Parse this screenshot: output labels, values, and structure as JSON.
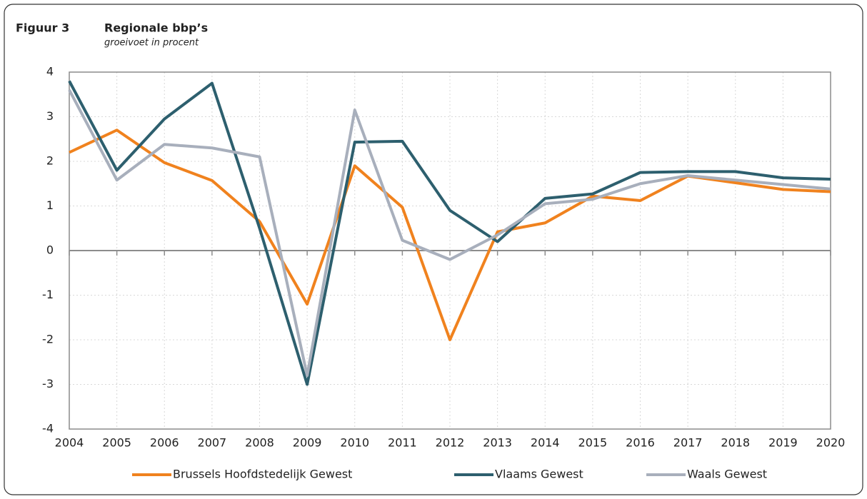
{
  "chart_data": {
    "type": "line",
    "figure_label": "Figuur 3",
    "title": "Regionale bbp’s",
    "subtitle": "groeivoet in procent",
    "x": [
      2004,
      2005,
      2006,
      2007,
      2008,
      2009,
      2010,
      2011,
      2012,
      2013,
      2014,
      2015,
      2016,
      2017,
      2018,
      2019,
      2020
    ],
    "xlim": [
      2004,
      2020
    ],
    "xticks": [
      2004,
      2005,
      2006,
      2007,
      2008,
      2009,
      2010,
      2011,
      2012,
      2013,
      2014,
      2015,
      2016,
      2017,
      2018,
      2019,
      2020
    ],
    "ylim": [
      -4,
      4
    ],
    "yticks": [
      -4,
      -3,
      -2,
      -1,
      0,
      1,
      2,
      3,
      4
    ],
    "grid": true,
    "legend": "bottom",
    "series": [
      {
        "name": "Brussels Hoofdstedelijk Gewest",
        "color": "#f0821e",
        "values": [
          2.2,
          2.7,
          1.97,
          1.57,
          0.65,
          -1.2,
          1.9,
          0.97,
          -2.0,
          0.42,
          0.62,
          1.22,
          1.12,
          1.67,
          1.52,
          1.37,
          1.32
        ]
      },
      {
        "name": "Vlaams Gewest",
        "color": "#2d5f6e",
        "values": [
          3.8,
          1.8,
          2.95,
          3.75,
          0.5,
          -3.0,
          2.43,
          2.45,
          0.9,
          0.2,
          1.17,
          1.27,
          1.75,
          1.77,
          1.77,
          1.63,
          1.6
        ]
      },
      {
        "name": "Waals Gewest",
        "color": "#a8afbc",
        "values": [
          3.6,
          1.58,
          2.38,
          2.3,
          2.1,
          -2.8,
          3.15,
          0.23,
          -0.2,
          0.35,
          1.05,
          1.15,
          1.5,
          1.68,
          1.58,
          1.48,
          1.38
        ]
      }
    ]
  }
}
